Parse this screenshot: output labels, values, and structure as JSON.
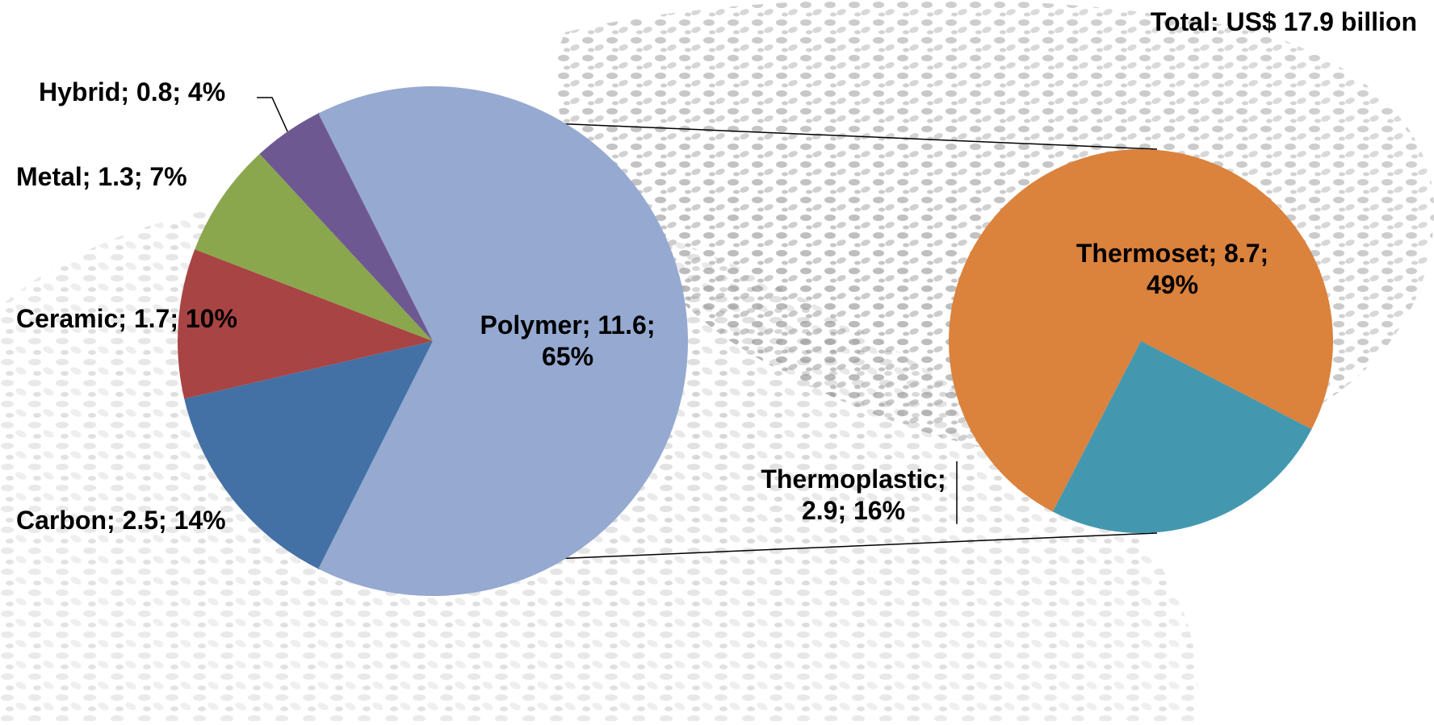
{
  "chart_data": [
    {
      "type": "pie",
      "title": "",
      "total_label": "Total: US$ 17.9 billion",
      "unit": "US$ billion",
      "slices": [
        {
          "name": "Polymer",
          "value": 11.6,
          "percent": 65,
          "color": "#95a9d1",
          "label_lines": [
            "Polymer; 11.6;",
            "65%"
          ]
        },
        {
          "name": "Carbon",
          "value": 2.5,
          "percent": 14,
          "color": "#4471a5",
          "label_lines": [
            "Carbon; 2.5; 14%"
          ]
        },
        {
          "name": "Ceramic",
          "value": 1.7,
          "percent": 10,
          "color": "#a84443",
          "label_lines": [
            "Ceramic; 1.7; 10%"
          ]
        },
        {
          "name": "Metal",
          "value": 1.3,
          "percent": 7,
          "color": "#8aa74d",
          "label_lines": [
            "Metal; 1.3; 7%"
          ]
        },
        {
          "name": "Hybrid",
          "value": 0.8,
          "percent": 4,
          "color": "#6e5892",
          "label_lines": [
            "Hybrid; 0.8; 4%"
          ]
        }
      ]
    },
    {
      "type": "pie",
      "title": "",
      "breakdown_of": "Polymer",
      "slices": [
        {
          "name": "Thermoset",
          "value": 8.7,
          "percent": 49,
          "color": "#db823d",
          "label_lines": [
            "Thermoset; 8.7;",
            "49%"
          ]
        },
        {
          "name": "Thermoplastic",
          "value": 2.9,
          "percent": 16,
          "color": "#4398b0",
          "label_lines": [
            "Thermoplastic;",
            "2.9; 16%"
          ]
        }
      ]
    }
  ]
}
